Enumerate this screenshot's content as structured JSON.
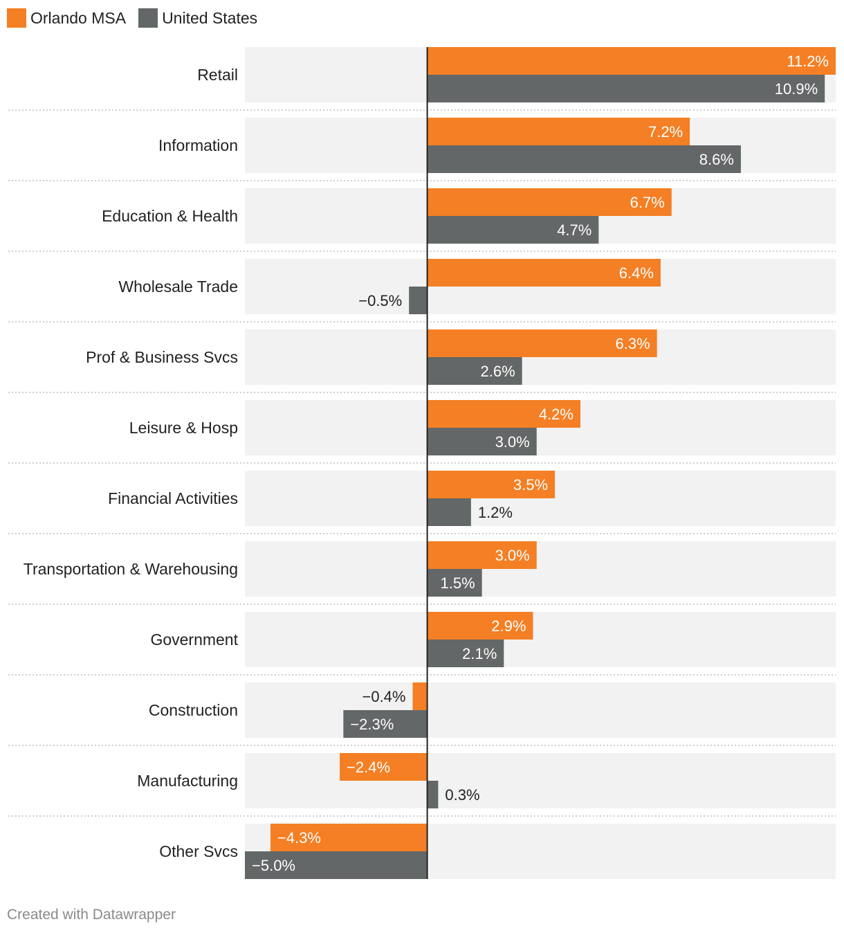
{
  "chart_data": {
    "type": "bar",
    "orientation": "horizontal",
    "categories": [
      "Retail",
      "Information",
      "Education & Health",
      "Wholesale Trade",
      "Prof & Business Svcs",
      "Leisure & Hosp",
      "Financial Activities",
      "Transportation & Warehousing",
      "Government",
      "Construction",
      "Manufacturing",
      "Other Svcs"
    ],
    "series": [
      {
        "name": "Orlando MSA",
        "color": "#f47f24",
        "values": [
          11.2,
          7.2,
          6.7,
          6.4,
          6.3,
          4.2,
          3.5,
          3.0,
          2.9,
          -0.4,
          -2.4,
          -4.3
        ]
      },
      {
        "name": "United States",
        "color": "#636767",
        "values": [
          10.9,
          8.6,
          4.7,
          -0.5,
          2.6,
          3.0,
          1.2,
          1.5,
          2.1,
          -2.3,
          0.3,
          -5.0
        ]
      }
    ],
    "xlim": [
      -5.0,
      11.2
    ],
    "value_format": "percent_1dp"
  },
  "legend": {
    "series1": "Orlando MSA",
    "series2": "United States"
  },
  "footer": "Created with Datawrapper"
}
